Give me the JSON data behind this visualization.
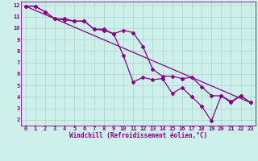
{
  "background_color": "#cdf0ea",
  "grid_color": "#b0d0cc",
  "line_color": "#880088",
  "xlim": [
    -0.5,
    23.5
  ],
  "ylim": [
    1.5,
    12.3
  ],
  "xticks": [
    0,
    1,
    2,
    3,
    4,
    5,
    6,
    7,
    8,
    9,
    10,
    11,
    12,
    13,
    14,
    15,
    16,
    17,
    18,
    19,
    20,
    21,
    22,
    23
  ],
  "yticks": [
    2,
    3,
    4,
    5,
    6,
    7,
    8,
    9,
    10,
    11,
    12
  ],
  "xlabel": "Windchill (Refroidissement éolien,°C)",
  "series1_x": [
    0,
    1,
    2,
    3,
    4,
    5,
    6,
    7,
    8,
    9,
    10,
    11,
    12,
    13,
    14,
    15,
    16,
    17,
    18,
    19,
    20,
    21,
    22,
    23
  ],
  "series1_y": [
    11.9,
    11.9,
    11.4,
    10.8,
    10.7,
    10.6,
    10.6,
    9.9,
    9.8,
    9.5,
    9.8,
    9.6,
    8.4,
    6.4,
    5.8,
    5.8,
    5.6,
    5.7,
    4.9,
    4.1,
    4.1,
    3.5,
    4.1,
    3.5
  ],
  "series2_x": [
    0,
    1,
    2,
    3,
    4,
    5,
    6,
    7,
    8,
    9,
    10,
    11,
    12,
    13,
    14,
    15,
    16,
    17,
    18,
    19,
    20,
    21,
    22,
    23
  ],
  "series2_y": [
    11.9,
    11.9,
    11.4,
    10.8,
    10.8,
    10.6,
    10.6,
    9.9,
    9.9,
    9.5,
    7.6,
    5.3,
    5.7,
    5.5,
    5.6,
    4.3,
    4.8,
    4.0,
    3.2,
    1.9,
    4.1,
    3.6,
    4.1,
    3.5
  ],
  "series3_x": [
    0,
    23
  ],
  "series3_y": [
    11.9,
    3.5
  ],
  "marker": "D",
  "marker_size": 2.0,
  "line_width": 0.9,
  "tick_fontsize": 5.0,
  "xlabel_fontsize": 5.5
}
